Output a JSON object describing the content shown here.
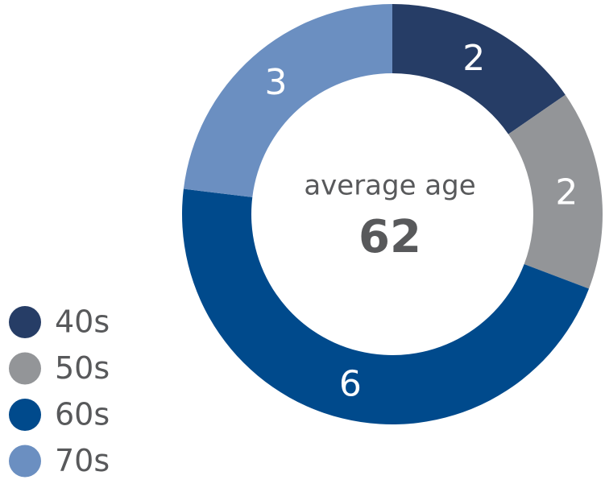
{
  "chart_data": {
    "type": "donut",
    "categories": [
      "40s",
      "50s",
      "60s",
      "70s"
    ],
    "values": [
      2,
      2,
      6,
      3
    ],
    "colors": [
      "#263d66",
      "#939598",
      "#004a8c",
      "#6b8fc1"
    ],
    "center_label": "average age",
    "center_value": 62,
    "legend": "bottom-left"
  }
}
